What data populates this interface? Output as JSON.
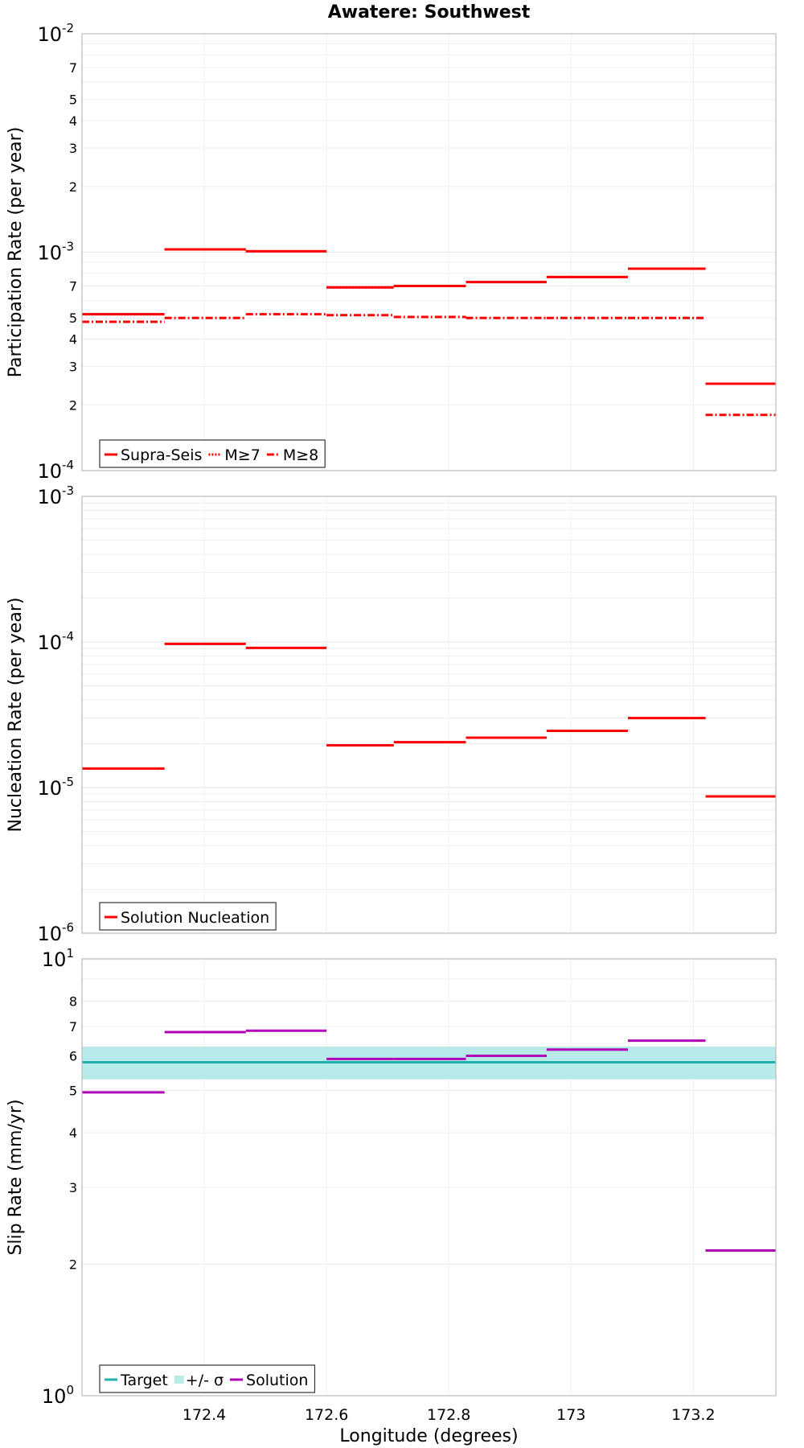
{
  "chart_data": [
    {
      "type": "line",
      "title": "Awatere: Southwest",
      "ylabel": "Participation Rate (per year)",
      "xlabel": "",
      "yscale": "log",
      "ylim": [
        0.0001,
        0.01
      ],
      "xlim": [
        172.2,
        173.335
      ],
      "grid": true,
      "legend_position": "bottom-left",
      "major_ticks": [
        {
          "value": 0.01,
          "base": "10",
          "exp": "-2"
        },
        {
          "value": 0.001,
          "base": "10",
          "exp": "-3"
        },
        {
          "value": 0.0001,
          "base": "10",
          "exp": "-4"
        }
      ],
      "minor_ticks": [
        {
          "value": 0.007,
          "label": "7"
        },
        {
          "value": 0.005,
          "label": "5"
        },
        {
          "value": 0.004,
          "label": "4"
        },
        {
          "value": 0.003,
          "label": "3"
        },
        {
          "value": 0.002,
          "label": "2"
        },
        {
          "value": 0.0007,
          "label": "7"
        },
        {
          "value": 0.0005,
          "label": "5"
        },
        {
          "value": 0.0004,
          "label": "4"
        },
        {
          "value": 0.0003,
          "label": "3"
        },
        {
          "value": 0.0002,
          "label": "2"
        }
      ],
      "series": [
        {
          "name": "Supra-Seis",
          "color": "#ff0000",
          "style": "solid",
          "segments": [
            {
              "x0": 172.2,
              "x1": 172.335,
              "y": 0.00052
            },
            {
              "x0": 172.335,
              "x1": 172.468,
              "y": 0.00103
            },
            {
              "x0": 172.468,
              "x1": 172.6,
              "y": 0.00101
            },
            {
              "x0": 172.6,
              "x1": 172.71,
              "y": 0.00069
            },
            {
              "x0": 172.71,
              "x1": 172.828,
              "y": 0.0007
            },
            {
              "x0": 172.828,
              "x1": 172.96,
              "y": 0.00073
            },
            {
              "x0": 172.96,
              "x1": 173.093,
              "y": 0.00077
            },
            {
              "x0": 173.093,
              "x1": 173.22,
              "y": 0.00084
            },
            {
              "x0": 173.22,
              "x1": 173.335,
              "y": 0.00025
            }
          ]
        },
        {
          "name": "M≥7",
          "color": "#ff0000",
          "style": "dotted",
          "segments": [
            {
              "x0": 172.2,
              "x1": 172.335,
              "y": 0.00052
            },
            {
              "x0": 172.335,
              "x1": 172.468,
              "y": 0.00103
            },
            {
              "x0": 172.468,
              "x1": 172.6,
              "y": 0.00101
            },
            {
              "x0": 172.6,
              "x1": 172.71,
              "y": 0.00069
            },
            {
              "x0": 172.71,
              "x1": 172.828,
              "y": 0.0007
            },
            {
              "x0": 172.828,
              "x1": 172.96,
              "y": 0.00073
            },
            {
              "x0": 172.96,
              "x1": 173.093,
              "y": 0.00077
            },
            {
              "x0": 173.093,
              "x1": 173.22,
              "y": 0.00084
            },
            {
              "x0": 173.22,
              "x1": 173.335,
              "y": 0.00025
            }
          ]
        },
        {
          "name": "M≥8",
          "color": "#ff0000",
          "style": "dashdot",
          "segments": [
            {
              "x0": 172.2,
              "x1": 172.335,
              "y": 0.00048
            },
            {
              "x0": 172.335,
              "x1": 172.468,
              "y": 0.0005
            },
            {
              "x0": 172.468,
              "x1": 172.6,
              "y": 0.00052
            },
            {
              "x0": 172.6,
              "x1": 172.71,
              "y": 0.000515
            },
            {
              "x0": 172.71,
              "x1": 172.828,
              "y": 0.000505
            },
            {
              "x0": 172.828,
              "x1": 172.96,
              "y": 0.0005
            },
            {
              "x0": 172.96,
              "x1": 173.093,
              "y": 0.0005
            },
            {
              "x0": 173.093,
              "x1": 173.22,
              "y": 0.0005
            },
            {
              "x0": 173.22,
              "x1": 173.335,
              "y": 0.00018
            }
          ]
        }
      ]
    },
    {
      "type": "line",
      "title": "",
      "ylabel": "Nucleation Rate (per year)",
      "xlabel": "",
      "yscale": "log",
      "ylim": [
        1e-06,
        0.001
      ],
      "xlim": [
        172.2,
        173.335
      ],
      "grid": true,
      "legend_position": "bottom-left",
      "major_ticks": [
        {
          "value": 0.001,
          "base": "10",
          "exp": "-3"
        },
        {
          "value": 0.0001,
          "base": "10",
          "exp": "-4"
        },
        {
          "value": 1e-05,
          "base": "10",
          "exp": "-5"
        },
        {
          "value": 1e-06,
          "base": "10",
          "exp": "-6"
        }
      ],
      "minor_ticks": [],
      "series": [
        {
          "name": "Solution Nucleation",
          "color": "#ff0000",
          "style": "solid",
          "segments": [
            {
              "x0": 172.2,
              "x1": 172.335,
              "y": 1.35e-05
            },
            {
              "x0": 172.335,
              "x1": 172.468,
              "y": 9.7e-05
            },
            {
              "x0": 172.468,
              "x1": 172.6,
              "y": 9.1e-05
            },
            {
              "x0": 172.6,
              "x1": 172.71,
              "y": 1.95e-05
            },
            {
              "x0": 172.71,
              "x1": 172.828,
              "y": 2.05e-05
            },
            {
              "x0": 172.828,
              "x1": 172.96,
              "y": 2.2e-05
            },
            {
              "x0": 172.96,
              "x1": 173.093,
              "y": 2.45e-05
            },
            {
              "x0": 173.093,
              "x1": 173.22,
              "y": 3e-05
            },
            {
              "x0": 173.22,
              "x1": 173.335,
              "y": 8.7e-06
            }
          ]
        }
      ]
    },
    {
      "type": "line",
      "title": "",
      "ylabel": "Slip Rate (mm/yr)",
      "xlabel": "Longitude (degrees)",
      "yscale": "log",
      "ylim": [
        1,
        10
      ],
      "xlim": [
        172.2,
        173.335
      ],
      "grid": true,
      "legend_position": "bottom-left",
      "major_ticks": [
        {
          "value": 10,
          "base": "10",
          "exp": "1"
        },
        {
          "value": 1,
          "base": "10",
          "exp": "0"
        }
      ],
      "minor_ticks": [
        {
          "value": 8,
          "label": "8"
        },
        {
          "value": 7,
          "label": "7"
        },
        {
          "value": 6,
          "label": "6"
        },
        {
          "value": 5,
          "label": "5"
        },
        {
          "value": 4,
          "label": "4"
        },
        {
          "value": 3,
          "label": "3"
        },
        {
          "value": 2,
          "label": "2"
        }
      ],
      "x_ticks": [
        {
          "value": 172.4,
          "label": "172.4"
        },
        {
          "value": 172.6,
          "label": "172.6"
        },
        {
          "value": 172.8,
          "label": "172.8"
        },
        {
          "value": 173.0,
          "label": "173"
        },
        {
          "value": 173.2,
          "label": "173.2"
        }
      ],
      "band": {
        "name": "+/- σ",
        "color": "#b8eaea",
        "y_low": 5.3,
        "y_high": 6.3
      },
      "series": [
        {
          "name": "Target",
          "color": "#20b2aa",
          "style": "solid",
          "segments": [
            {
              "x0": 172.2,
              "x1": 173.335,
              "y": 5.8
            }
          ]
        },
        {
          "name": "Solution",
          "color": "#b000b8",
          "style": "solid",
          "segments": [
            {
              "x0": 172.2,
              "x1": 172.335,
              "y": 4.95
            },
            {
              "x0": 172.335,
              "x1": 172.468,
              "y": 6.8
            },
            {
              "x0": 172.468,
              "x1": 172.6,
              "y": 6.85
            },
            {
              "x0": 172.6,
              "x1": 172.71,
              "y": 5.9
            },
            {
              "x0": 172.71,
              "x1": 172.828,
              "y": 5.9
            },
            {
              "x0": 172.828,
              "x1": 172.96,
              "y": 6.0
            },
            {
              "x0": 172.96,
              "x1": 173.093,
              "y": 6.2
            },
            {
              "x0": 173.093,
              "x1": 173.22,
              "y": 6.5
            },
            {
              "x0": 173.22,
              "x1": 173.335,
              "y": 2.15
            }
          ]
        }
      ],
      "legend_order": [
        "Target",
        "+/- σ",
        "Solution"
      ]
    }
  ]
}
